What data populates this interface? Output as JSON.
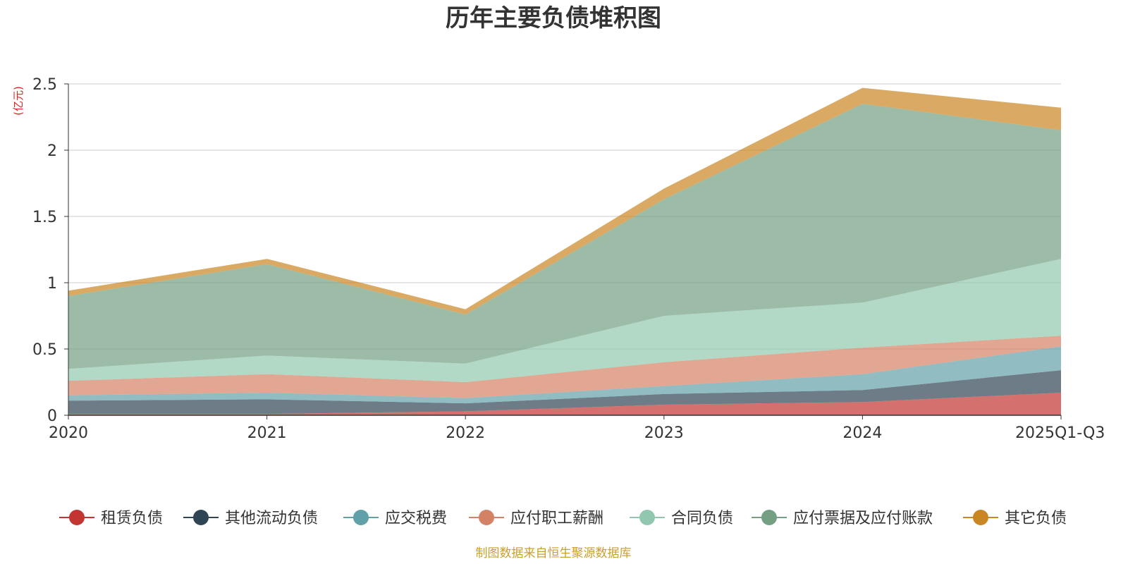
{
  "chart_data": {
    "type": "area",
    "stacked": true,
    "title": "历年主要负债堆积图",
    "ylabel": "(亿元)",
    "xlabel": "",
    "categories": [
      "2020",
      "2021",
      "2022",
      "2023",
      "2024",
      "2025Q1-Q3"
    ],
    "ylim": [
      0,
      2.5
    ],
    "yticks": [
      0,
      0.5,
      1,
      1.5,
      2,
      2.5
    ],
    "ytick_labels": [
      "0",
      "0.5",
      "1",
      "1.5",
      "2",
      "2.5"
    ],
    "grid": true,
    "legend_position": "bottom",
    "series": [
      {
        "name": "租赁负债",
        "color": "#c23531",
        "values": [
          0.01,
          0.01,
          0.03,
          0.08,
          0.1,
          0.17
        ]
      },
      {
        "name": "其他流动负债",
        "color": "#2f4554",
        "values": [
          0.1,
          0.11,
          0.06,
          0.08,
          0.09,
          0.17
        ]
      },
      {
        "name": "应交税费",
        "color": "#61a0a8",
        "values": [
          0.04,
          0.05,
          0.04,
          0.06,
          0.12,
          0.18
        ]
      },
      {
        "name": "应付职工薪酬",
        "color": "#d48265",
        "values": [
          0.11,
          0.14,
          0.12,
          0.18,
          0.2,
          0.08
        ]
      },
      {
        "name": "合同负债",
        "color": "#91c7ae",
        "values": [
          0.09,
          0.14,
          0.14,
          0.35,
          0.34,
          0.58
        ]
      },
      {
        "name": "应付票据及应付账款",
        "color": "#749f83",
        "values": [
          0.55,
          0.69,
          0.37,
          0.88,
          1.5,
          0.97
        ]
      },
      {
        "name": "其它负债",
        "color": "#ca8622",
        "values": [
          0.04,
          0.04,
          0.04,
          0.08,
          0.12,
          0.17
        ]
      }
    ],
    "source_note": "制图数据来自恒生聚源数据库"
  }
}
